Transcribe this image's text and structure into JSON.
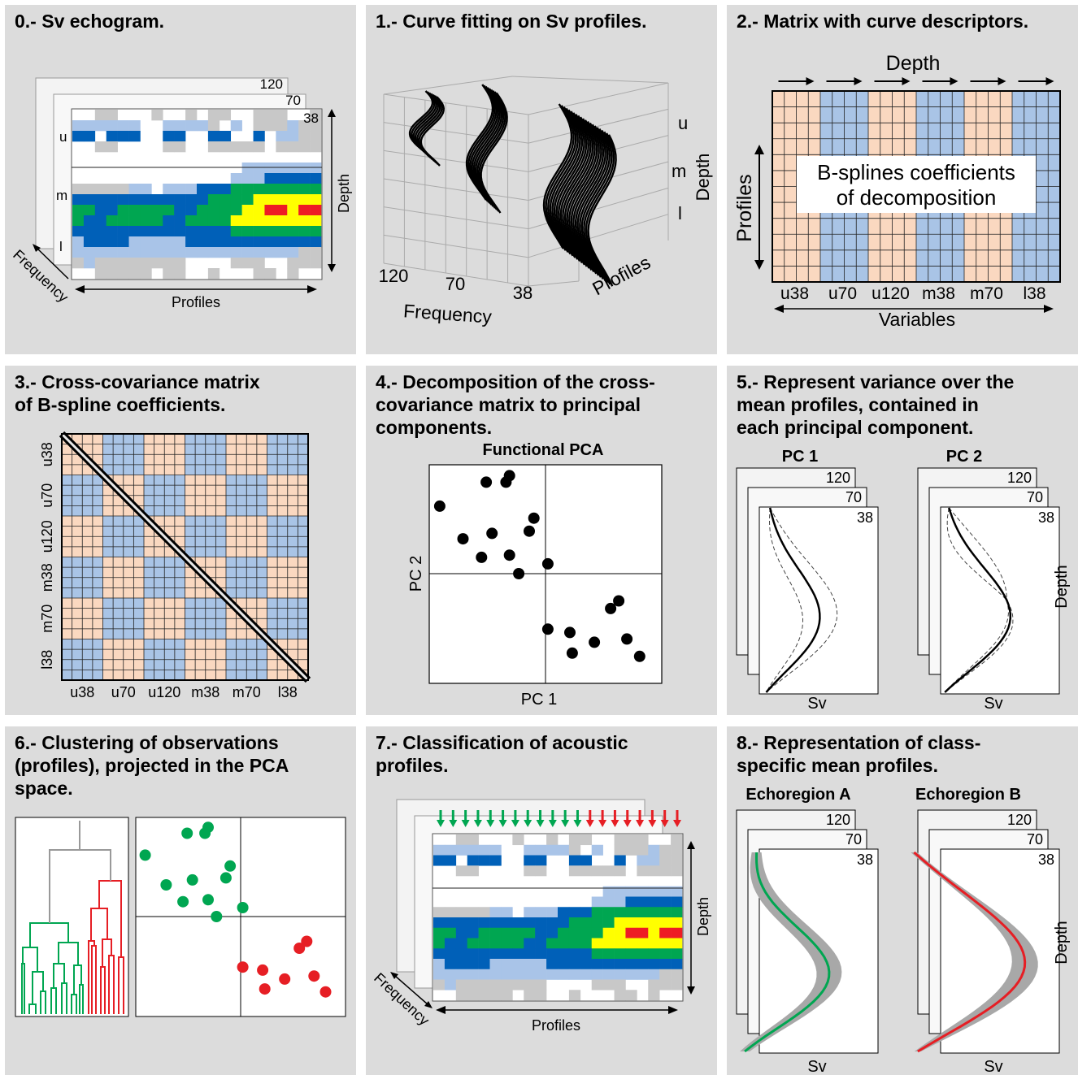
{
  "panels": [
    {
      "title": "0.- Sv echogram.",
      "freq_labels": [
        "120",
        "70",
        "38"
      ],
      "layer_labels": [
        "u",
        "m",
        "l"
      ],
      "axis_labels": {
        "depth": "Depth",
        "frequency": "Frequency",
        "profiles": "Profiles"
      }
    },
    {
      "title": "1.- Curve fitting on Sv profiles.",
      "freq_ticks": [
        "120",
        "70",
        "38"
      ],
      "layer_labels": [
        "u",
        "m",
        "l"
      ],
      "axis_labels": {
        "depth": "Depth",
        "frequency": "Frequency",
        "profiles": "Profiles"
      }
    },
    {
      "title": "2.- Matrix with curve descriptors.",
      "top_label": "Depth",
      "left_label": "Profiles",
      "box_text": [
        "B-splines coefficients",
        "of decomposition"
      ],
      "col_labels": [
        "u38",
        "u70",
        "u120",
        "m38",
        "m70",
        "l38"
      ],
      "bottom_label": "Variables"
    },
    {
      "title": "3.- Cross-covariance matrix\n of B-spline coefficients.",
      "row_labels": [
        "u38",
        "u70",
        "u120",
        "m38",
        "m70",
        "l38"
      ],
      "col_labels": [
        "u38",
        "u70",
        "u120",
        "m38",
        "m70",
        "l38"
      ]
    },
    {
      "title": "4.- Decomposition of the cross-\ncovariance matrix to principal\ncomponents.",
      "plot_title": "Functional PCA",
      "xlabel": "PC 1",
      "ylabel": "PC 2"
    },
    {
      "title": "5.- Represent variance over the\n     mean profiles, contained in\n     each principal component.",
      "subplots": [
        {
          "title": "PC 1"
        },
        {
          "title": "PC 2"
        }
      ],
      "freq_labels": [
        "120",
        "70",
        "38"
      ],
      "xlabel": "Sv",
      "ylabel": "Depth"
    },
    {
      "title": "6.- Clustering of observations\n(profiles), projected in the PCA\nspace."
    },
    {
      "title": "7.- Classification of acoustic\n     profiles.",
      "axis_labels": {
        "depth": "Depth",
        "frequency": "Frequency",
        "profiles": "Profiles"
      }
    },
    {
      "title": "8.- Representation of class-\n     specific mean profiles.",
      "subplots": [
        {
          "title": "Echoregion A"
        },
        {
          "title": "Echoregion B"
        }
      ],
      "freq_labels": [
        "120",
        "70",
        "38"
      ],
      "xlabel": "Sv",
      "ylabel": "Depth"
    }
  ],
  "colors": {
    "panel_bg": "#dcdcdc",
    "grey": "#c8c8c8",
    "lightblue": "#a9c4e8",
    "blue": "#0060b8",
    "green": "#00a651",
    "yellow": "#ffff00",
    "red": "#ee1c24",
    "peach": "#fad8c0",
    "matrix_blue": "#a9c4e6",
    "cluster_green": "#00a651",
    "cluster_red": "#e61e24",
    "shade": "#a8a8a8"
  },
  "chart_data": [
    {
      "type": "scatter",
      "title": "Functional PCA",
      "xlabel": "PC 1",
      "ylabel": "PC 2",
      "xlim": [
        -1,
        1
      ],
      "ylim": [
        -1,
        1
      ],
      "x": [
        -0.31,
        -0.51,
        -0.34,
        -0.91,
        -0.1,
        -0.14,
        -0.71,
        -0.46,
        -0.55,
        -0.31,
        -0.23,
        0.02,
        0.63,
        0.56,
        0.02,
        0.21,
        0.42,
        0.7,
        0.81,
        0.23
      ],
      "y": [
        0.9,
        0.84,
        0.84,
        0.62,
        0.51,
        0.39,
        0.32,
        0.37,
        0.15,
        0.17,
        0.0,
        0.09,
        -0.25,
        -0.32,
        -0.51,
        -0.54,
        -0.63,
        -0.6,
        -0.76,
        -0.73
      ]
    },
    {
      "type": "scatter",
      "title": "",
      "xlabel": "",
      "ylabel": "",
      "xlim": [
        -1,
        1
      ],
      "ylim": [
        -1,
        1
      ],
      "series": [
        {
          "x": [
            -0.31,
            -0.51,
            -0.34,
            -0.91,
            -0.1,
            -0.14,
            -0.71,
            -0.46,
            -0.55,
            -0.31,
            -0.23,
            0.02
          ],
          "y": [
            0.9,
            0.84,
            0.84,
            0.62,
            0.51,
            0.39,
            0.32,
            0.37,
            0.15,
            0.17,
            0.0,
            0.09
          ]
        },
        {
          "x": [
            0.63,
            0.56,
            0.02,
            0.21,
            0.42,
            0.7,
            0.81,
            0.23
          ],
          "y": [
            -0.25,
            -0.32,
            -0.51,
            -0.54,
            -0.63,
            -0.6,
            -0.76,
            -0.73
          ]
        }
      ]
    }
  ]
}
